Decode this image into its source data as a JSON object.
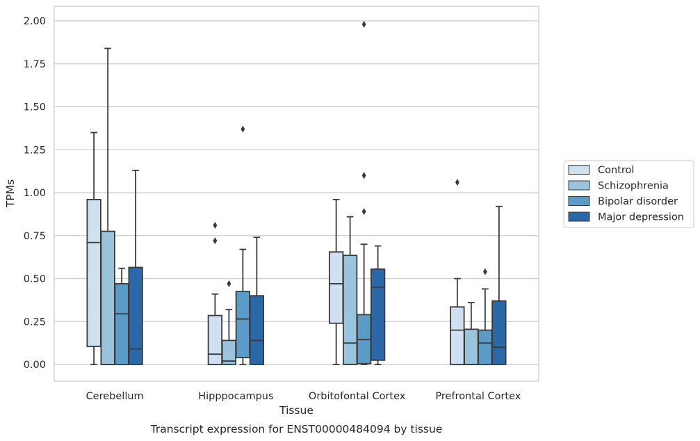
{
  "chart_data": {
    "type": "box",
    "title": "",
    "caption": "Transcript expression for ENST00000484094 by tissue",
    "xlabel": "Tissue",
    "ylabel": "TPMs",
    "ylim": [
      -0.1,
      2.08
    ],
    "yticks": [
      "0.00",
      "0.25",
      "0.50",
      "0.75",
      "1.00",
      "1.25",
      "1.50",
      "1.75",
      "2.00"
    ],
    "grid": "horizontal",
    "legend_position": "right",
    "categories": [
      "Cerebellum",
      "Hipppocampus",
      "Orbitofontal Cortex",
      "Prefrontal Cortex"
    ],
    "series": [
      {
        "name": "Control",
        "color": "#cfe1f1",
        "boxes": [
          {
            "whislo": 0.0,
            "q1": 0.105,
            "med": 0.71,
            "q3": 0.96,
            "whishi": 1.35,
            "fliers": []
          },
          {
            "whislo": 0.0,
            "q1": 0.0,
            "med": 0.06,
            "q3": 0.285,
            "whishi": 0.41,
            "fliers": [
              0.72,
              0.81
            ]
          },
          {
            "whislo": 0.0,
            "q1": 0.24,
            "med": 0.47,
            "q3": 0.655,
            "whishi": 0.96,
            "fliers": []
          },
          {
            "whislo": 0.0,
            "q1": 0.0,
            "med": 0.2,
            "q3": 0.335,
            "whishi": 0.5,
            "fliers": [
              1.06
            ]
          }
        ]
      },
      {
        "name": "Schizophrenia",
        "color": "#9ac3de",
        "boxes": [
          {
            "whislo": 0.0,
            "q1": 0.0,
            "med": 0.0,
            "q3": 0.775,
            "whishi": 1.84,
            "fliers": []
          },
          {
            "whislo": 0.0,
            "q1": 0.0,
            "med": 0.02,
            "q3": 0.14,
            "whishi": 0.32,
            "fliers": [
              0.47
            ]
          },
          {
            "whislo": 0.0,
            "q1": 0.0,
            "med": 0.125,
            "q3": 0.635,
            "whishi": 0.86,
            "fliers": []
          },
          {
            "whislo": 0.0,
            "q1": 0.0,
            "med": 0.0,
            "q3": 0.205,
            "whishi": 0.36,
            "fliers": []
          }
        ]
      },
      {
        "name": "Bipolar disorder",
        "color": "#5b9bc8",
        "boxes": [
          {
            "whislo": 0.0,
            "q1": 0.0,
            "med": 0.295,
            "q3": 0.47,
            "whishi": 0.56,
            "fliers": []
          },
          {
            "whislo": 0.0,
            "q1": 0.04,
            "med": 0.265,
            "q3": 0.425,
            "whishi": 0.67,
            "fliers": [
              1.37
            ]
          },
          {
            "whislo": 0.0,
            "q1": 0.005,
            "med": 0.145,
            "q3": 0.29,
            "whishi": 0.7,
            "fliers": [
              0.89,
              1.1,
              1.98
            ]
          },
          {
            "whislo": 0.0,
            "q1": 0.0,
            "med": 0.125,
            "q3": 0.2,
            "whishi": 0.44,
            "fliers": [
              0.54
            ]
          }
        ]
      },
      {
        "name": "Major depression",
        "color": "#2a68a8",
        "boxes": [
          {
            "whislo": 0.0,
            "q1": 0.0,
            "med": 0.09,
            "q3": 0.565,
            "whishi": 1.13,
            "fliers": []
          },
          {
            "whislo": 0.0,
            "q1": 0.0,
            "med": 0.14,
            "q3": 0.4,
            "whishi": 0.74,
            "fliers": []
          },
          {
            "whislo": 0.0,
            "q1": 0.025,
            "med": 0.45,
            "q3": 0.555,
            "whishi": 0.69,
            "fliers": []
          },
          {
            "whislo": 0.0,
            "q1": 0.0,
            "med": 0.1,
            "q3": 0.37,
            "whishi": 0.92,
            "fliers": []
          }
        ]
      }
    ]
  }
}
